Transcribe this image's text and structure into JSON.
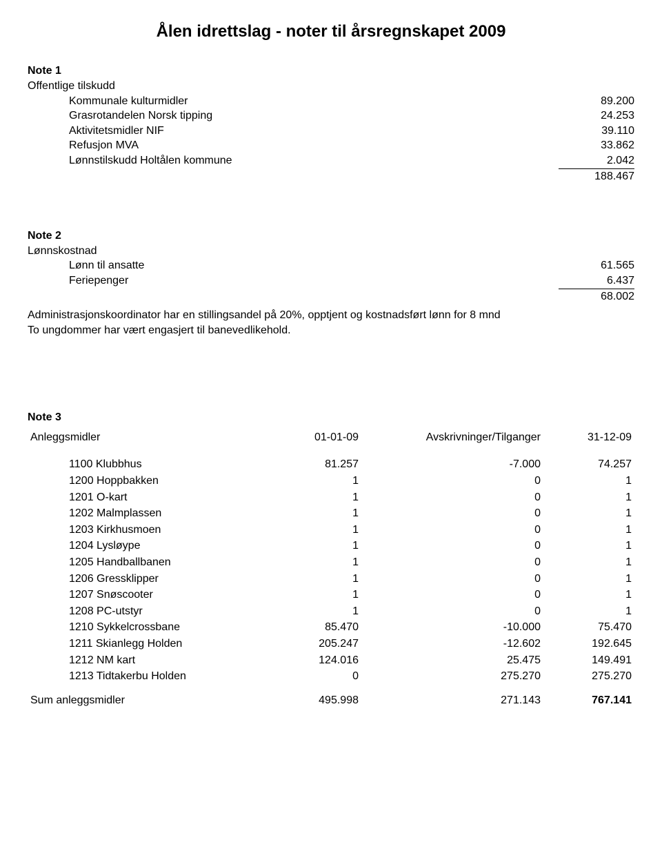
{
  "title": "Ålen idrettslag - noter til årsregnskapet 2009",
  "note1": {
    "heading": "Note 1",
    "subheading": "Offentlige tilskudd",
    "rows": [
      {
        "label": "Kommunale kulturmidler",
        "value": "89.200"
      },
      {
        "label": "Grasrotandelen Norsk tipping",
        "value": "24.253"
      },
      {
        "label": "Aktivitetsmidler NIF",
        "value": "39.110"
      },
      {
        "label": "Refusjon MVA",
        "value": "33.862"
      },
      {
        "label": "Lønnstilskudd Holtålen kommune",
        "value": "2.042"
      }
    ],
    "total": "188.467"
  },
  "note2": {
    "heading": "Note 2",
    "subheading": "Lønnskostnad",
    "rows": [
      {
        "label": "Lønn til ansatte",
        "value": "61.565"
      },
      {
        "label": "Feriepenger",
        "value": "6.437"
      }
    ],
    "total": "68.002",
    "para1": "Administrasjonskoordinator har en stillingsandel på 20%, opptjent og kostnadsført lønn for 8 mnd",
    "para2": "To ungdommer har vært engasjert til banevedlikehold."
  },
  "note3": {
    "heading": "Note 3",
    "col_headers": [
      "Anleggsmidler",
      "01-01-09",
      "Avskrivninger/Tilganger",
      "31-12-09"
    ],
    "assets": [
      {
        "name": "1100 Klubbhus",
        "a": "81.257",
        "b": "-7.000",
        "c": "74.257"
      },
      {
        "name": "1200 Hoppbakken",
        "a": "1",
        "b": "0",
        "c": "1"
      },
      {
        "name": "1201 O-kart",
        "a": "1",
        "b": "0",
        "c": "1"
      },
      {
        "name": "1202 Malmplassen",
        "a": "1",
        "b": "0",
        "c": "1"
      },
      {
        "name": "1203 Kirkhusmoen",
        "a": "1",
        "b": "0",
        "c": "1"
      },
      {
        "name": "1204 Lysløype",
        "a": "1",
        "b": "0",
        "c": "1"
      },
      {
        "name": "1205 Handballbanen",
        "a": "1",
        "b": "0",
        "c": "1"
      },
      {
        "name": "1206 Gressklipper",
        "a": "1",
        "b": "0",
        "c": "1"
      },
      {
        "name": "1207 Snøscooter",
        "a": "1",
        "b": "0",
        "c": "1"
      },
      {
        "name": "1208 PC-utstyr",
        "a": "1",
        "b": "0",
        "c": "1"
      },
      {
        "name": "1210 Sykkelcrossbane",
        "a": "85.470",
        "b": "-10.000",
        "c": "75.470"
      },
      {
        "name": "1211 Skianlegg Holden",
        "a": "205.247",
        "b": "-12.602",
        "c": "192.645"
      },
      {
        "name": "1212 NM kart",
        "a": "124.016",
        "b": "25.475",
        "c": "149.491"
      },
      {
        "name": "1213 Tidtakerbu Holden",
        "a": "0",
        "b": "275.270",
        "c": "275.270"
      }
    ],
    "sum": {
      "label": "Sum anleggsmidler",
      "a": "495.998",
      "b": "271.143",
      "c": "767.141"
    }
  }
}
